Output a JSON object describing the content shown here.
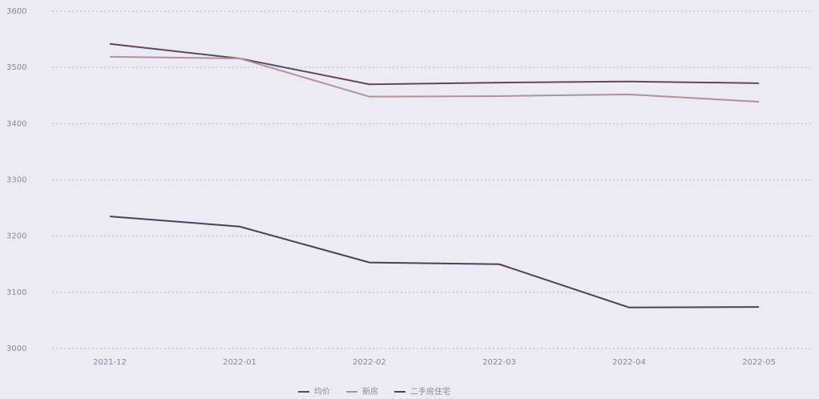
{
  "chart_data": {
    "type": "line",
    "categories": [
      "2021-12",
      "2022-01",
      "2022-02",
      "2022-03",
      "2022-04",
      "2022-05"
    ],
    "series": [
      {
        "name": "均价",
        "color": "#5a4a5e",
        "values": [
          3542,
          3516,
          3470,
          3473,
          3475,
          3472
        ]
      },
      {
        "name": "新房",
        "color": "#b0909a",
        "values": [
          3519,
          3516,
          3448,
          3449,
          3452,
          3439
        ]
      },
      {
        "name": "二手房住宅",
        "color": "#4a4052",
        "values": [
          3235,
          3217,
          3153,
          3150,
          3073,
          3074
        ]
      }
    ],
    "ylim": [
      3000,
      3600
    ],
    "yticks": [
      3000,
      3100,
      3200,
      3300,
      3400,
      3500,
      3600
    ],
    "grid": true
  }
}
